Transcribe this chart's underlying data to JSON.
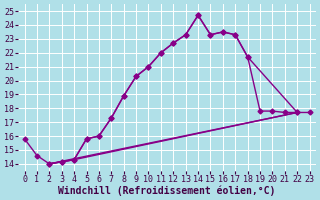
{
  "background_color": "#b0e0e8",
  "grid_color": "#ffffff",
  "line_color": "#880088",
  "markersize": 2.5,
  "linewidth": 1.0,
  "xlabel": "Windchill (Refroidissement éolien,°C)",
  "xlabel_fontsize": 7,
  "tick_fontsize": 6,
  "xlim": [
    -0.5,
    23.5
  ],
  "ylim": [
    13.5,
    25.5
  ],
  "xticks": [
    0,
    1,
    2,
    3,
    4,
    5,
    6,
    7,
    8,
    9,
    10,
    11,
    12,
    13,
    14,
    15,
    16,
    17,
    18,
    19,
    20,
    21,
    22,
    23
  ],
  "yticks": [
    14,
    15,
    16,
    17,
    18,
    19,
    20,
    21,
    22,
    23,
    24,
    25
  ],
  "series_x": [
    [
      0,
      1,
      2,
      3,
      4,
      5,
      6,
      7,
      8,
      9,
      10,
      11,
      12,
      13,
      14,
      15,
      16,
      17,
      18,
      19,
      20,
      21,
      22,
      23
    ],
    [
      2,
      3,
      4,
      5,
      6,
      7,
      8,
      9,
      10,
      11,
      12,
      13,
      14,
      15,
      16,
      17,
      18,
      22
    ],
    [
      2,
      3,
      4,
      22
    ],
    [
      2,
      22
    ]
  ],
  "series_y": [
    [
      15.8,
      14.6,
      14.0,
      14.15,
      14.3,
      15.8,
      16.0,
      17.3,
      18.9,
      20.3,
      21.0,
      22.0,
      22.7,
      23.3,
      24.7,
      23.3,
      23.5,
      23.3,
      21.7,
      17.8,
      17.8,
      17.7,
      17.7,
      17.7
    ],
    [
      14.0,
      14.15,
      14.3,
      15.8,
      16.0,
      17.3,
      18.9,
      20.3,
      21.0,
      22.0,
      22.7,
      23.3,
      24.7,
      23.3,
      23.5,
      23.3,
      21.7,
      17.7
    ],
    [
      14.0,
      14.15,
      14.3,
      17.7
    ],
    [
      14.0,
      17.7
    ]
  ],
  "series_has_markers": [
    true,
    true,
    false,
    false
  ]
}
